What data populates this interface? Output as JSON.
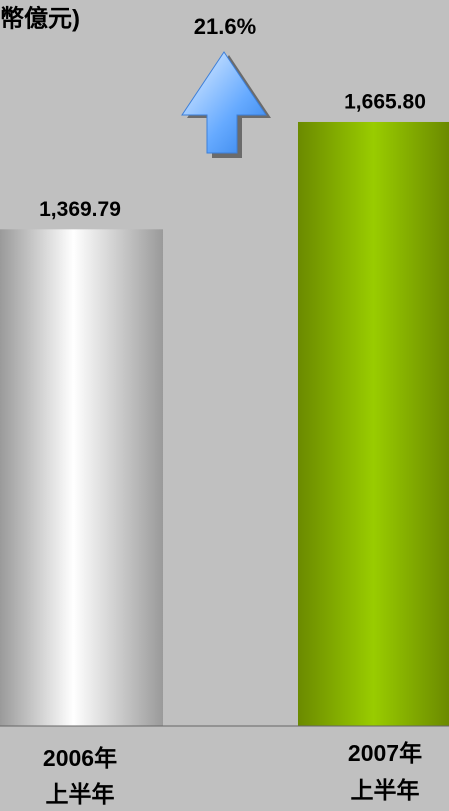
{
  "chart_data": {
    "type": "bar",
    "title": "幣億元)",
    "annotation": "21.6%",
    "categories": [
      [
        "2006年",
        "上半年"
      ],
      [
        "2007年",
        "上半年"
      ]
    ],
    "values": [
      1369.79,
      1665.8
    ],
    "value_labels": [
      "1,369.79",
      "1,665.80"
    ],
    "colors": [
      "#d9d9d9",
      "#99cc00"
    ],
    "ylim": [
      0,
      2000
    ]
  }
}
